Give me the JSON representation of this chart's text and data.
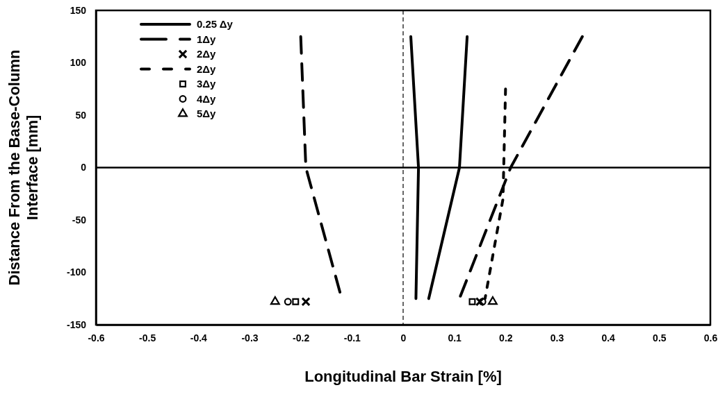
{
  "chart_data": {
    "type": "line",
    "xlabel": "Longitudinal Bar Strain [%]",
    "ylabel": "Distance From the Base-Column Interface [mm]",
    "xlim": [
      -0.6,
      0.6
    ],
    "xticks": [
      -0.6,
      -0.5,
      -0.4,
      -0.3,
      -0.2,
      -0.1,
      0,
      0.1,
      0.2,
      0.3,
      0.4,
      0.5,
      0.6
    ],
    "ylim": [
      -150,
      150
    ],
    "yticks": [
      -150,
      -100,
      -50,
      0,
      50,
      100,
      150
    ],
    "grid": false,
    "legend": "top left",
    "marker": "none",
    "ref_lines": [
      {
        "axis": "x",
        "value": 0,
        "line_style": "dashed",
        "color": "#000000"
      },
      {
        "axis": "y",
        "value": 0,
        "line_style": "solid",
        "color": "#000000"
      }
    ],
    "series": [
      {
        "name": "0.25 Δy",
        "line_style": "solid",
        "color": "#000000",
        "x": [
          0.015,
          0.03,
          0.025,
          null,
          0.125,
          0.11,
          0.05
        ],
        "values": [
          125,
          0,
          -125,
          null,
          125,
          0,
          -125
        ]
      },
      {
        "name": "1Δy",
        "line_style": "dashed",
        "color": "#000000",
        "x": [
          -0.2,
          -0.19,
          -0.12,
          null,
          0.35,
          0.21,
          0.11
        ],
        "values": [
          125,
          0,
          -125,
          null,
          125,
          0,
          -125
        ]
      },
      {
        "name": "2Δy",
        "type": "scatter",
        "marker": "cross",
        "color": "#000000",
        "x": [
          -0.19,
          0.15
        ],
        "values": [
          -128,
          -128
        ]
      },
      {
        "name": "2Δy",
        "line_style": "dotted",
        "color": "#000000",
        "x": [
          0.2,
          0.195,
          0.16
        ],
        "values": [
          75,
          -30,
          -125
        ]
      },
      {
        "name": "3Δy",
        "type": "scatter",
        "marker": "square",
        "color": "#000000",
        "x": [
          -0.21,
          0.135
        ],
        "values": [
          -128,
          -128
        ]
      },
      {
        "name": "4Δy",
        "type": "scatter",
        "marker": "circle",
        "color": "#000000",
        "x": [
          -0.225,
          0.155
        ],
        "values": [
          -128,
          -128
        ]
      },
      {
        "name": "5Δy",
        "type": "scatter",
        "marker": "triangle",
        "color": "#000000",
        "x": [
          -0.25,
          0.175
        ],
        "values": [
          -128,
          -128
        ]
      }
    ]
  }
}
